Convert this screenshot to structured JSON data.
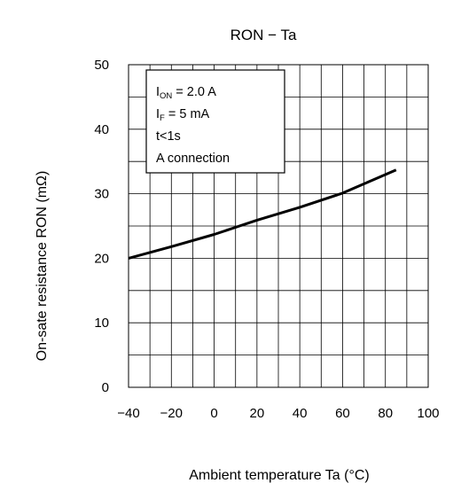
{
  "chart_data": {
    "type": "line",
    "title": "RON − Ta",
    "xlabel": "Ambient temperature Ta (°C)",
    "ylabel": "On-sate resistance RON (mΩ)",
    "xlim": [
      -40,
      100
    ],
    "ylim": [
      0,
      50
    ],
    "x_ticks": [
      -40,
      -20,
      0,
      20,
      40,
      60,
      80,
      100
    ],
    "y_ticks": [
      0,
      10,
      20,
      30,
      40,
      50
    ],
    "grid": true,
    "annotation": {
      "line1_main": "I",
      "line1_sub": "ON",
      "line1_rest": " = 2.0 A",
      "line2_main": "I",
      "line2_sub": "F",
      "line2_rest": " = 5 mA",
      "line3": "t<1s",
      "line4": "A connection"
    },
    "series": [
      {
        "x": [
          -40,
          -20,
          0,
          10,
          20,
          40,
          60,
          85
        ],
        "y": [
          20.0,
          21.8,
          23.7,
          24.8,
          25.9,
          27.9,
          30.1,
          33.7
        ]
      }
    ]
  }
}
